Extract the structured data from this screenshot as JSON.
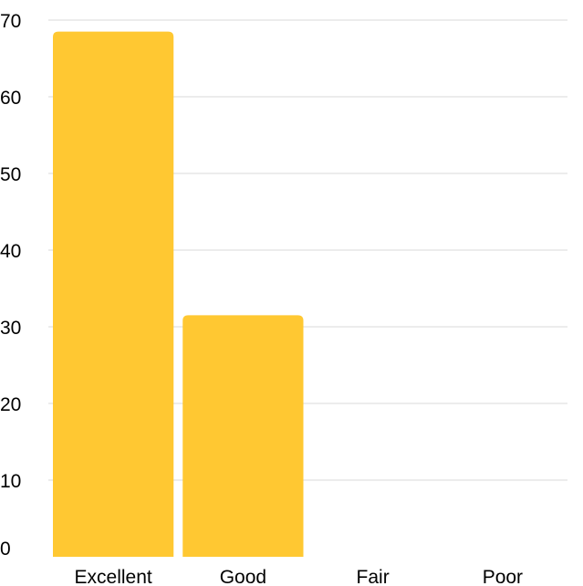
{
  "chart_data": {
    "type": "bar",
    "categories": [
      "Excellent",
      "Good",
      "Fair",
      "Poor"
    ],
    "values": [
      68.5,
      31.5,
      0,
      0
    ],
    "ylim": [
      0,
      70
    ],
    "yticks": [
      0,
      10,
      20,
      30,
      40,
      50,
      60,
      70
    ],
    "grid": true,
    "bar_color": "#FFC832",
    "grid_color": "#D9D9D9",
    "text_color": "#000000"
  }
}
